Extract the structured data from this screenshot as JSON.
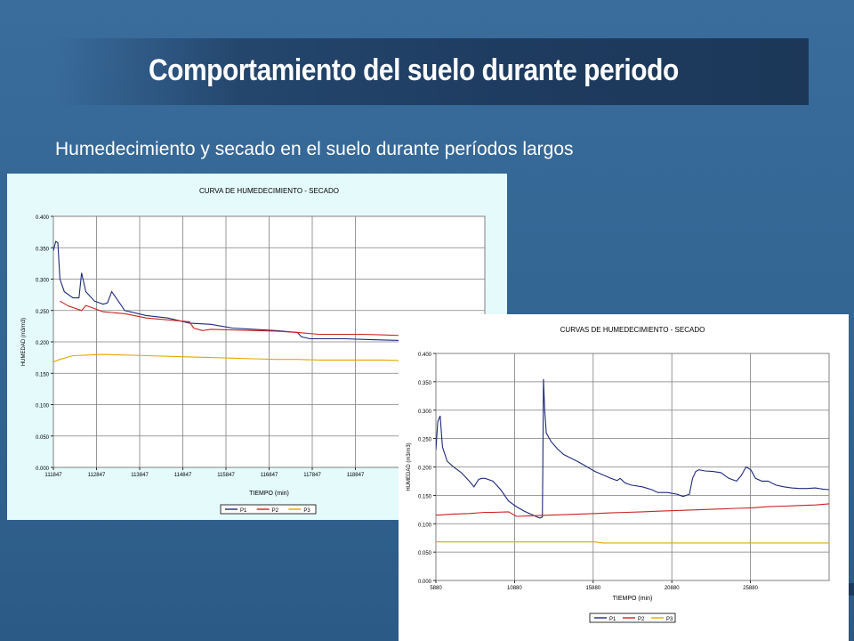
{
  "slide": {
    "title": "Comportamiento del suelo durante periodo",
    "subtitle": "Humedecimiento  y secado en el suelo durante períodos largos"
  },
  "colors": {
    "background": "#336592",
    "title_bar": "#1e3c60",
    "P1": "#1f2a7a",
    "P2": "#cc2222",
    "P3": "#e0a800"
  },
  "chart_data": [
    {
      "type": "line",
      "title": "CURVA DE HUMEDECIMIENTO - SECADO",
      "xlabel": "TIEMPO (min)",
      "ylabel": "HUMEDAD (m3/m3)",
      "xlim": [
        111847,
        121847
      ],
      "ylim": [
        0,
        0.4
      ],
      "yticks": [
        "0.000",
        "0.050",
        "0.100",
        "0.150",
        "0.200",
        "0.250",
        "0.300",
        "0.350",
        "0.400"
      ],
      "xtick_labels": [
        "111847",
        "112847",
        "113847",
        "114847",
        "115847",
        "116847",
        "117847",
        "118847"
      ],
      "grid": true,
      "legend": "bottom",
      "series": [
        {
          "name": "P1",
          "color": "#1f2a7a",
          "x": [
            111847,
            111900,
            111950,
            112000,
            112100,
            112300,
            112440,
            112500,
            112600,
            112800,
            113000,
            113100,
            113200,
            113300,
            113500,
            114000,
            114500,
            115000,
            115500,
            116000,
            116500,
            117000,
            117500,
            117600,
            117800,
            118200,
            118600,
            119000,
            119500,
            120000,
            120500,
            121000,
            121400,
            121847
          ],
          "y": [
            0.345,
            0.36,
            0.358,
            0.3,
            0.28,
            0.27,
            0.27,
            0.31,
            0.28,
            0.265,
            0.26,
            0.262,
            0.28,
            0.27,
            0.25,
            0.242,
            0.238,
            0.23,
            0.228,
            0.222,
            0.22,
            0.218,
            0.215,
            0.208,
            0.205,
            0.205,
            0.205,
            0.204,
            0.203,
            0.202,
            0.201,
            0.2,
            0.2,
            0.2
          ]
        },
        {
          "name": "P2",
          "color": "#cc2222",
          "x": [
            112000,
            112200,
            112500,
            112600,
            112800,
            113000,
            113500,
            114000,
            114500,
            115000,
            115100,
            115300,
            115500,
            116000,
            116500,
            117000,
            117500,
            118000,
            118500,
            119000,
            119500,
            120000,
            120500,
            121000,
            121847
          ],
          "y": [
            0.265,
            0.257,
            0.25,
            0.258,
            0.253,
            0.248,
            0.245,
            0.238,
            0.235,
            0.232,
            0.222,
            0.218,
            0.22,
            0.219,
            0.218,
            0.217,
            0.215,
            0.212,
            0.212,
            0.212,
            0.211,
            0.21,
            0.21,
            0.21,
            0.21
          ]
        },
        {
          "name": "P3",
          "color": "#e0a800",
          "x": [
            111847,
            112000,
            112300,
            113000,
            113500,
            114000,
            114500,
            115000,
            115500,
            116000,
            116500,
            117000,
            117500,
            118000,
            118500,
            119000,
            119500,
            120000,
            120500,
            121000,
            121847
          ],
          "y": [
            0.168,
            0.172,
            0.178,
            0.18,
            0.179,
            0.178,
            0.177,
            0.176,
            0.175,
            0.174,
            0.173,
            0.172,
            0.172,
            0.171,
            0.171,
            0.171,
            0.171,
            0.17,
            0.17,
            0.17,
            0.17
          ]
        }
      ]
    },
    {
      "type": "line",
      "title": "CURVAS DE HUMEDECIMIENTO - SECADO",
      "xlabel": "TIEMPO (min)",
      "ylabel": "HUMEDAD (m3/m3)",
      "xlim": [
        5880,
        30880
      ],
      "ylim": [
        0,
        0.4
      ],
      "yticks": [
        "0.000",
        "0.050",
        "0.100",
        "0.150",
        "0.200",
        "0.250",
        "0.300",
        "0.350",
        "0.400"
      ],
      "xtick_labels": [
        "5880",
        "10880",
        "15880",
        "20880",
        "25880"
      ],
      "grid": true,
      "legend": "bottom",
      "series": [
        {
          "name": "P1",
          "color": "#1f2a7a",
          "x": [
            5880,
            6000,
            6150,
            6300,
            6600,
            7000,
            7500,
            8000,
            8300,
            8600,
            8800,
            9000,
            9500,
            10000,
            10500,
            11000,
            11500,
            12000,
            12300,
            12500,
            12650,
            12680,
            12720,
            12800,
            12900,
            13200,
            13600,
            14000,
            14500,
            15000,
            15500,
            16000,
            16500,
            17000,
            17400,
            17600,
            17900,
            18300,
            19000,
            19600,
            20000,
            20600,
            21200,
            21600,
            22000,
            22200,
            22400,
            22600,
            23000,
            23500,
            24000,
            24500,
            25000,
            25300,
            25600,
            25900,
            26200,
            26600,
            27000,
            27500,
            28000,
            28500,
            29000,
            29500,
            30000,
            30500,
            30880
          ],
          "y": [
            0.23,
            0.28,
            0.29,
            0.235,
            0.21,
            0.2,
            0.19,
            0.175,
            0.165,
            0.178,
            0.18,
            0.18,
            0.175,
            0.16,
            0.14,
            0.13,
            0.122,
            0.116,
            0.112,
            0.11,
            0.112,
            0.2,
            0.355,
            0.3,
            0.26,
            0.245,
            0.232,
            0.222,
            0.215,
            0.208,
            0.2,
            0.192,
            0.186,
            0.18,
            0.176,
            0.18,
            0.172,
            0.168,
            0.165,
            0.16,
            0.155,
            0.155,
            0.152,
            0.148,
            0.152,
            0.18,
            0.192,
            0.195,
            0.193,
            0.192,
            0.19,
            0.18,
            0.175,
            0.185,
            0.2,
            0.195,
            0.18,
            0.175,
            0.175,
            0.168,
            0.165,
            0.163,
            0.162,
            0.162,
            0.163,
            0.161,
            0.16
          ]
        },
        {
          "name": "P2",
          "color": "#cc2222",
          "x": [
            5880,
            7000,
            8000,
            9000,
            9500,
            10500,
            11000,
            12000,
            13000,
            14000,
            15000,
            16000,
            17000,
            18000,
            19000,
            20000,
            21000,
            22000,
            23000,
            24000,
            25000,
            26000,
            27000,
            28000,
            29000,
            30000,
            30880
          ],
          "y": [
            0.115,
            0.117,
            0.118,
            0.12,
            0.12,
            0.121,
            0.113,
            0.114,
            0.115,
            0.116,
            0.117,
            0.118,
            0.119,
            0.12,
            0.121,
            0.122,
            0.123,
            0.124,
            0.125,
            0.126,
            0.127,
            0.128,
            0.13,
            0.131,
            0.132,
            0.133,
            0.135
          ]
        },
        {
          "name": "P3",
          "color": "#e0a800",
          "x": [
            5880,
            8000,
            10000,
            12000,
            14000,
            16000,
            16500,
            18000,
            20000,
            22000,
            24000,
            26000,
            28000,
            30000,
            30880
          ],
          "y": [
            0.068,
            0.068,
            0.068,
            0.068,
            0.068,
            0.068,
            0.066,
            0.066,
            0.066,
            0.066,
            0.066,
            0.066,
            0.066,
            0.066,
            0.066
          ]
        }
      ]
    }
  ]
}
